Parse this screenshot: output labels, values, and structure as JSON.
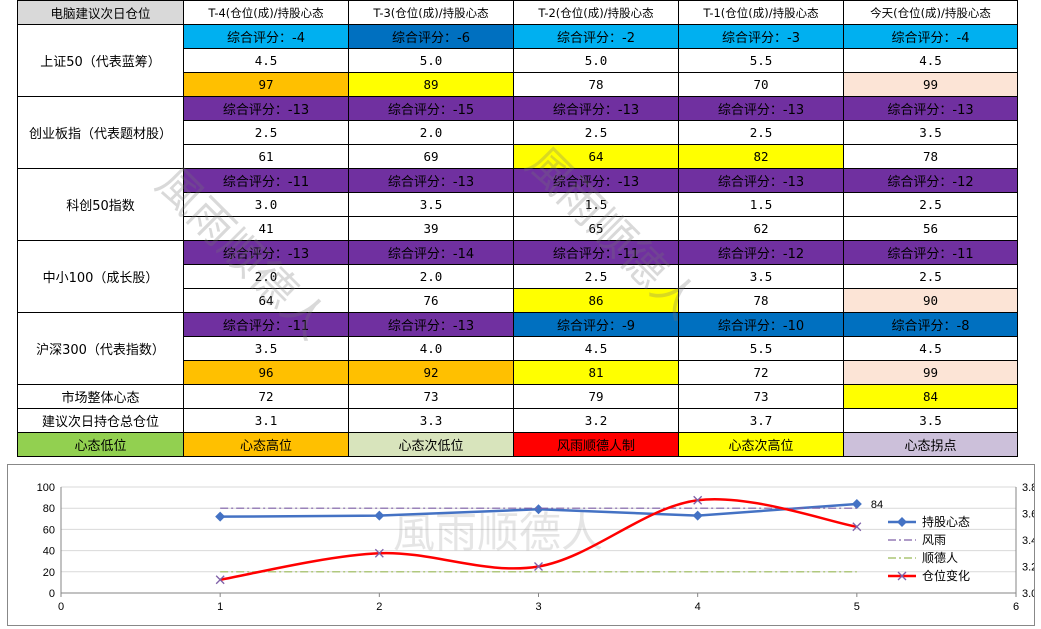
{
  "table": {
    "corner": "电脑建议次日仓位",
    "headers": [
      "T-4(仓位(成)/持股心态",
      "T-3(仓位(成)/持股心态",
      "T-2(仓位(成)/持股心态",
      "T-1(仓位(成)/持股心态",
      "今天(仓位(成)/持股心态"
    ],
    "groups": [
      {
        "name": "上证50（代表蓝筹）",
        "scores": [
          "综合评分：-4",
          "综合评分：-6",
          "综合评分：-2",
          "综合评分：-3",
          "综合评分：-4"
        ],
        "score_colors": [
          "#00b0f0",
          "#0070c0",
          "#00b0f0",
          "#00b0f0",
          "#00b0f0"
        ],
        "positions": [
          "4.5",
          "5.0",
          "5.0",
          "5.5",
          "4.5"
        ],
        "moods": [
          "97",
          "89",
          "78",
          "70",
          "99"
        ],
        "mood_colors": [
          "#ffc000",
          "#ffff00",
          "#ffffff",
          "#ffffff",
          "#fce4d6"
        ]
      },
      {
        "name": "创业板指（代表题材股）",
        "scores": [
          "综合评分：-13",
          "综合评分：-15",
          "综合评分：-13",
          "综合评分：-13",
          "综合评分：-13"
        ],
        "score_colors": [
          "#7030a0",
          "#7030a0",
          "#7030a0",
          "#7030a0",
          "#7030a0"
        ],
        "positions": [
          "2.5",
          "2.0",
          "2.5",
          "2.5",
          "3.5"
        ],
        "moods": [
          "61",
          "69",
          "64",
          "82",
          "78"
        ],
        "mood_colors": [
          "#ffffff",
          "#ffffff",
          "#ffff00",
          "#ffff00",
          "#ffffff"
        ]
      },
      {
        "name": "科创50指数",
        "scores": [
          "综合评分：-11",
          "综合评分：-13",
          "综合评分：-13",
          "综合评分：-13",
          "综合评分：-12"
        ],
        "score_colors": [
          "#7030a0",
          "#7030a0",
          "#7030a0",
          "#7030a0",
          "#7030a0"
        ],
        "positions": [
          "3.0",
          "3.5",
          "1.5",
          "1.5",
          "2.5"
        ],
        "moods": [
          "41",
          "39",
          "65",
          "62",
          "56"
        ],
        "mood_colors": [
          "#ffffff",
          "#ffffff",
          "#ffffff",
          "#ffffff",
          "#ffffff"
        ]
      },
      {
        "name": "中小100（成长股）",
        "scores": [
          "综合评分：-13",
          "综合评分：-14",
          "综合评分：-11",
          "综合评分：-12",
          "综合评分：-11"
        ],
        "score_colors": [
          "#7030a0",
          "#7030a0",
          "#7030a0",
          "#7030a0",
          "#7030a0"
        ],
        "positions": [
          "2.0",
          "2.0",
          "2.5",
          "3.5",
          "2.5"
        ],
        "moods": [
          "64",
          "76",
          "86",
          "78",
          "90"
        ],
        "mood_colors": [
          "#ffffff",
          "#ffffff",
          "#ffff00",
          "#ffffff",
          "#fce4d6"
        ]
      },
      {
        "name": "沪深300（代表指数）",
        "scores": [
          "综合评分：-11",
          "综合评分：-13",
          "综合评分：-9",
          "综合评分：-10",
          "综合评分：-8"
        ],
        "score_colors": [
          "#7030a0",
          "#7030a0",
          "#0070c0",
          "#0070c0",
          "#0070c0"
        ],
        "positions": [
          "3.5",
          "4.0",
          "4.5",
          "5.5",
          "4.5"
        ],
        "moods": [
          "96",
          "92",
          "81",
          "72",
          "99"
        ],
        "mood_colors": [
          "#ffc000",
          "#ffc000",
          "#ffff00",
          "#ffffff",
          "#fce4d6"
        ]
      }
    ],
    "market_label": "市场整体心态",
    "market_values": [
      "72",
      "73",
      "79",
      "73",
      "84"
    ],
    "market_colors": [
      "#ffffff",
      "#ffffff",
      "#ffffff",
      "#ffffff",
      "#ffff00"
    ],
    "total_label": "建议次日持仓总仓位",
    "total_values": [
      "3.1",
      "3.3",
      "3.2",
      "3.7",
      "3.5"
    ],
    "legend": [
      {
        "label": "心态低位",
        "color": "#92d050"
      },
      {
        "label": "心态高位",
        "color": "#ffc000"
      },
      {
        "label": "心态次低位",
        "color": "#d8e4bc"
      },
      {
        "label": "风雨顺德人制",
        "color": "#ff0000"
      },
      {
        "label": "心态次高位",
        "color": "#ffff00"
      },
      {
        "label": "心态拐点",
        "color": "#ccc0da"
      }
    ]
  },
  "watermarks": {
    "table_text_1": "風雨顺德人",
    "table_text_2": "風雨顺德人",
    "chart_text": "風雨顺德人"
  },
  "chart_data": {
    "type": "line",
    "x_range": [
      0,
      6
    ],
    "x_ticks": [
      "0",
      "1",
      "2",
      "3",
      "4",
      "5",
      "6"
    ],
    "y_left_range": [
      0,
      100
    ],
    "y_left_ticks": [
      "0",
      "20",
      "40",
      "60",
      "80",
      "100"
    ],
    "y_right_range": [
      3.0,
      3.8
    ],
    "y_right_ticks": [
      "3.0",
      "3.2",
      "3.4",
      "3.6",
      "3.8"
    ],
    "grid": true,
    "legend_position": "right",
    "series": [
      {
        "name": "持股心态",
        "axis": "left",
        "color": "#4472c4",
        "marker": "diamond",
        "x": [
          1,
          2,
          3,
          4,
          5
        ],
        "y": [
          72,
          73,
          79,
          73,
          84
        ],
        "last_label": "84"
      },
      {
        "name": "风雨",
        "axis": "left",
        "color": "#7f60a8",
        "style": "dashdot",
        "x": [
          1,
          5
        ],
        "y": [
          80,
          80
        ]
      },
      {
        "name": "顺德人",
        "axis": "left",
        "color": "#9bbb59",
        "style": "dashdot",
        "x": [
          1,
          5
        ],
        "y": [
          20,
          20
        ]
      },
      {
        "name": "仓位变化",
        "axis": "right",
        "color": "#ff0000",
        "marker": "x",
        "smooth": true,
        "x": [
          1,
          2,
          3,
          4,
          5
        ],
        "y": [
          3.1,
          3.3,
          3.2,
          3.7,
          3.5
        ]
      }
    ]
  }
}
